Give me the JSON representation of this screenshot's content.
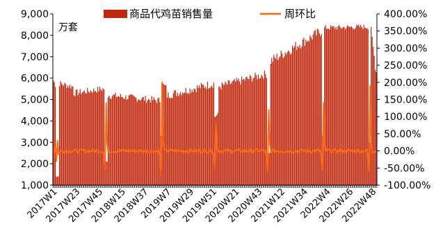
{
  "chart_data": {
    "type": "bar+line",
    "unit_label": "万套",
    "legend": [
      {
        "name": "商品代鸡苗销售量",
        "kind": "bar",
        "color": "#C0280E"
      },
      {
        "name": "周环比",
        "kind": "line",
        "color": "#FF6A10"
      }
    ],
    "legend_position": "top",
    "y_left": {
      "min": 1000,
      "max": 9000,
      "ticks": [
        1000,
        2000,
        3000,
        4000,
        5000,
        6000,
        7000,
        8000,
        9000
      ],
      "tick_labels": [
        "1,000",
        "2,000",
        "3,000",
        "4,000",
        "5,000",
        "6,000",
        "7,000",
        "8,000",
        "9,000"
      ]
    },
    "y_right": {
      "min": -100,
      "max": 400,
      "ticks": [
        -100,
        -50,
        0,
        50,
        100,
        150,
        200,
        250,
        300,
        350,
        400
      ],
      "tick_labels": [
        "-100.00%",
        "-50.00%",
        "0.00%",
        "50.00%",
        "100.00%",
        "150.00%",
        "200.00%",
        "250.00%",
        "300.00%",
        "350.00%",
        "400.00%"
      ]
    },
    "x_tick_labels": [
      "2017W1",
      "2017W23",
      "2017W45",
      "2018W15",
      "2018W37",
      "2019W7",
      "2019W29",
      "2019W51",
      "2020W21",
      "2020W43",
      "2021W12",
      "2021W34",
      "2022W4",
      "2022W26",
      "2022W48"
    ],
    "approx_week_count": 313,
    "sales_series": {
      "name": "商品代鸡苗销售量",
      "segments": [
        {
          "start_week": 1,
          "end_week": 3,
          "start_value": 5900,
          "end_value": 5700,
          "noise": 150
        },
        {
          "start_week": 4,
          "end_week": 6,
          "start_value": 1400,
          "end_value": 1400,
          "noise": 0
        },
        {
          "start_week": 7,
          "end_week": 20,
          "start_value": 5750,
          "end_value": 5600,
          "noise": 160
        },
        {
          "start_week": 21,
          "end_week": 50,
          "start_value": 5300,
          "end_value": 5500,
          "noise": 160
        },
        {
          "start_week": 51,
          "end_week": 53,
          "start_value": 2100,
          "end_value": 2100,
          "noise": 0
        },
        {
          "start_week": 54,
          "end_week": 104,
          "start_value": 5200,
          "end_value": 4950,
          "noise": 170
        },
        {
          "start_week": 105,
          "end_week": 106,
          "start_value": 3300,
          "end_value": 3300,
          "noise": 0
        },
        {
          "start_week": 107,
          "end_week": 110,
          "start_value": 5700,
          "end_value": 5600,
          "noise": 100
        },
        {
          "start_week": 111,
          "end_week": 156,
          "start_value": 5200,
          "end_value": 5750,
          "noise": 200
        },
        {
          "start_week": 157,
          "end_week": 160,
          "start_value": 4200,
          "end_value": 4300,
          "noise": 100
        },
        {
          "start_week": 161,
          "end_week": 207,
          "start_value": 5600,
          "end_value": 6200,
          "noise": 200
        },
        {
          "start_week": 208,
          "end_week": 210,
          "start_value": 2500,
          "end_value": 2500,
          "noise": 0
        },
        {
          "start_week": 211,
          "end_week": 260,
          "start_value": 6800,
          "end_value": 8200,
          "noise": 250
        },
        {
          "start_week": 261,
          "end_week": 262,
          "start_value": 3300,
          "end_value": 3300,
          "noise": 0
        },
        {
          "start_week": 263,
          "end_week": 305,
          "start_value": 8350,
          "end_value": 8400,
          "noise": 130
        },
        {
          "start_week": 306,
          "end_week": 307,
          "start_value": 3000,
          "end_value": 3000,
          "noise": 0
        },
        {
          "start_week": 308,
          "end_week": 313,
          "start_value": 8100,
          "end_value": 6300,
          "noise": 300
        }
      ]
    },
    "wow_series": {
      "name": "周环比",
      "baseline_percent": 0,
      "noise_percent": 6,
      "spikes": [
        {
          "week": 3,
          "values": [
            10,
            -30,
            30,
            -10
          ]
        },
        {
          "week": 50,
          "values": [
            -15,
            -55,
            140,
            20
          ]
        },
        {
          "week": 104,
          "values": [
            -20,
            -70,
            200,
            30
          ]
        },
        {
          "week": 156,
          "values": [
            -15,
            -50,
            80,
            15
          ]
        },
        {
          "week": 207,
          "values": [
            -20,
            -60,
            120,
            20
          ]
        },
        {
          "week": 260,
          "values": [
            -25,
            -55,
            140,
            20
          ]
        },
        {
          "week": 305,
          "values": [
            -30,
            -60,
            190,
            20
          ]
        }
      ]
    }
  }
}
